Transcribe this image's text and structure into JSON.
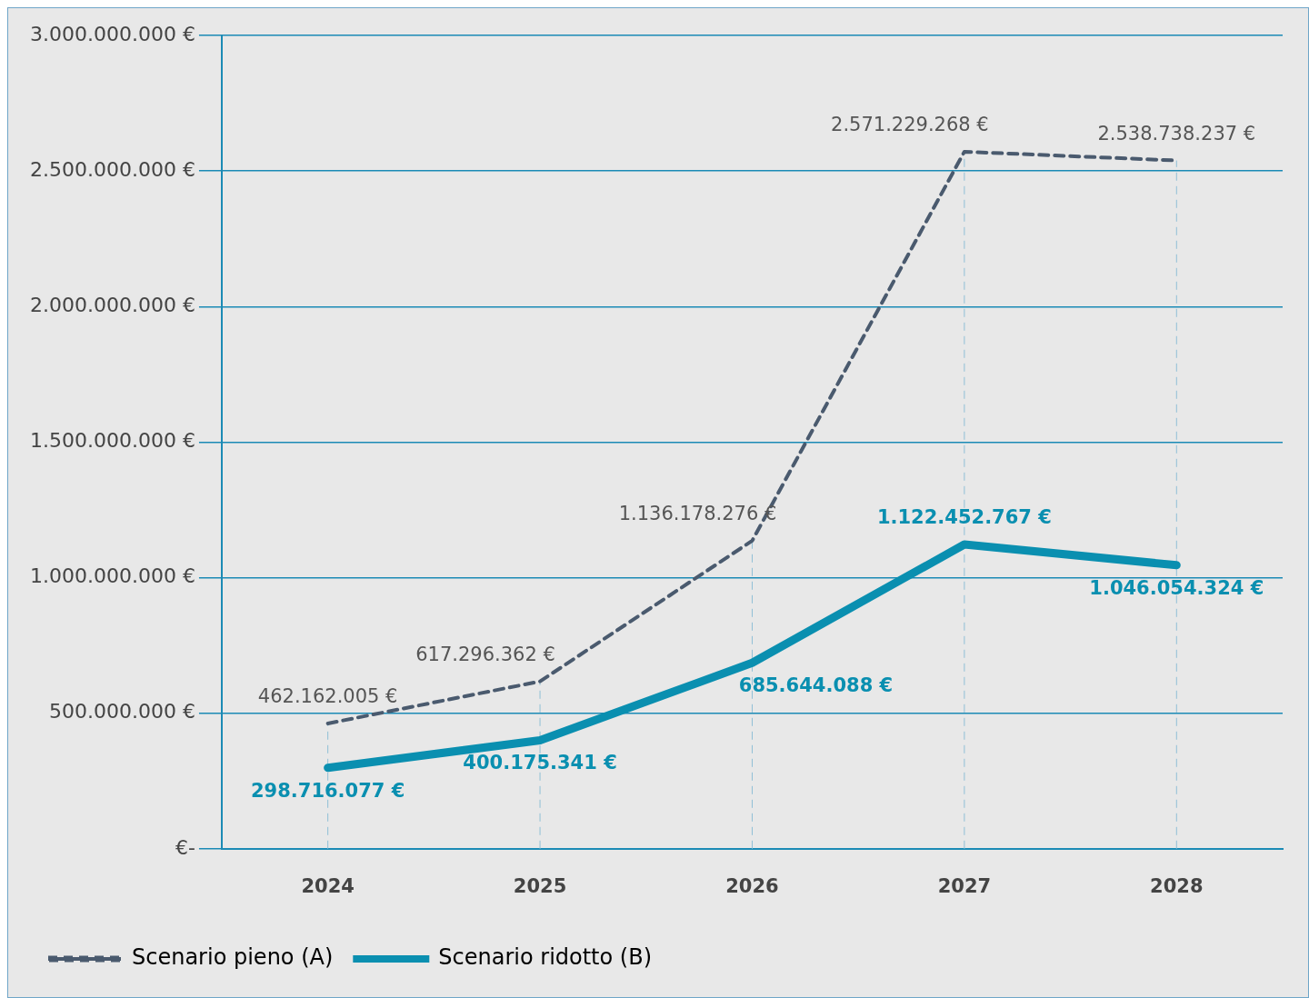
{
  "chart_data": {
    "type": "line",
    "categories": [
      "2024",
      "2025",
      "2026",
      "2027",
      "2028"
    ],
    "series": [
      {
        "name": "Scenario pieno (A)",
        "color": "#4a5a6e",
        "line_style": "dashed",
        "values": [
          462162005,
          617296362,
          1136178276,
          2571229268,
          2538738237
        ],
        "value_labels": [
          "462.162.005 €",
          "617.296.362 €",
          "1.136.178.276 €",
          "2.571.229.268 €",
          "2.538.738.237 €"
        ]
      },
      {
        "name": "Scenario ridotto (B)",
        "color": "#0a8fb0",
        "line_style": "solid",
        "values": [
          298716077,
          400175341,
          685644088,
          1122452767,
          1046054324
        ],
        "value_labels": [
          "298.716.077 €",
          "400.175.341 €",
          "685.644.088 €",
          "1.122.452.767 €",
          "1.046.054.324 €"
        ]
      }
    ],
    "ylim": [
      0,
      3000000000
    ],
    "yticks": [
      {
        "value": 0,
        "label": "€-"
      },
      {
        "value": 500000000,
        "label": "500.000.000 €"
      },
      {
        "value": 1000000000,
        "label": "1.000.000.000 €"
      },
      {
        "value": 1500000000,
        "label": "1.500.000.000 €"
      },
      {
        "value": 2000000000,
        "label": "2.000.000.000 €"
      },
      {
        "value": 2500000000,
        "label": "2.500.000.000 €"
      },
      {
        "value": 3000000000,
        "label": "3.000.000.000 €"
      }
    ],
    "grid": true,
    "legend": "bottom",
    "marker": "none"
  }
}
